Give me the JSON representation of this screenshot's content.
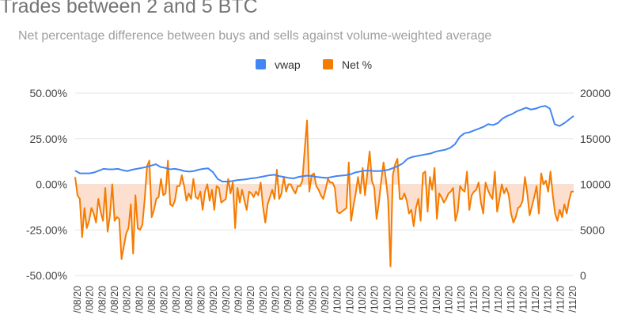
{
  "chart_data": {
    "type": "line",
    "title": "Trades between 2 and 5 BTC",
    "subtitle": "Net percentage difference between buys and sells against volume-weighted average",
    "legend": {
      "position": "top",
      "entries": [
        "vwap",
        "Net %"
      ]
    },
    "colors": {
      "vwap": "#4285f4",
      "net": "#f57c00",
      "net_fill": "#fbd9c6",
      "grid": "#e6e6e6"
    },
    "left_axis": {
      "series": "Net %",
      "ylim": [
        -50,
        50
      ],
      "ticks": [
        "50.00%",
        "25.00%",
        "0.00%",
        "-25.00%",
        "-50.00%"
      ]
    },
    "right_axis": {
      "series": "vwap",
      "ylim": [
        0,
        20000
      ],
      "ticks": [
        "20000",
        "15000",
        "10000",
        "5000",
        "0"
      ]
    },
    "x_tick_labels": [
      "/08/20",
      "/08/20",
      "/08/20",
      "/08/20",
      "/08/20",
      "/08/20",
      "/08/20",
      "/08/20",
      "/08/20",
      "/08/20",
      "/08/20",
      "/09/20",
      "/09/20",
      "/09/20",
      "/09/20",
      "/09/20",
      "/09/20",
      "/09/20",
      "/09/20",
      "/09/20",
      "/09/20",
      "/10/20",
      "/10/20",
      "/10/20",
      "/10/20",
      "/10/20",
      "/10/20",
      "/10/20",
      "/10/20",
      "/10/20",
      "/10/20",
      "/11/20",
      "/11/20",
      "/11/20",
      "/11/20",
      "/11/20",
      "/11/20",
      "/11/20",
      "/11/20",
      "/11/20",
      "/11/20"
    ],
    "series": [
      {
        "name": "vwap",
        "axis": "right",
        "values": [
          11500,
          11200,
          11200,
          11200,
          11300,
          11500,
          11700,
          11650,
          11650,
          11700,
          11550,
          11450,
          11600,
          11700,
          11800,
          11900,
          12050,
          12200,
          11900,
          11800,
          11650,
          11700,
          11600,
          11450,
          11400,
          11450,
          11600,
          11700,
          11750,
          11350,
          10600,
          10300,
          10300,
          10350,
          10450,
          10500,
          10550,
          10650,
          10700,
          10800,
          10900,
          11000,
          11050,
          10900,
          10800,
          10700,
          10650,
          10800,
          10900,
          10950,
          10900,
          10800,
          10750,
          10700,
          10800,
          10900,
          10950,
          11000,
          11100,
          11300,
          11400,
          11500,
          11500,
          11450,
          11450,
          11500,
          11600,
          11800,
          12000,
          12300,
          12800,
          13000,
          13100,
          13200,
          13300,
          13400,
          13600,
          13700,
          13800,
          14000,
          14400,
          15200,
          15600,
          15700,
          15900,
          16100,
          16300,
          16600,
          16500,
          16700,
          17200,
          17500,
          17700,
          18000,
          18200,
          18400,
          18200,
          18300,
          18500,
          18600,
          18300,
          16600,
          16400,
          16700,
          17100,
          17500
        ]
      },
      {
        "name": "Net %",
        "axis": "left",
        "values": [
          4,
          -6,
          -8,
          -29,
          -13,
          -24,
          -20,
          -13,
          -16,
          -21,
          -8,
          -15,
          -20,
          -2,
          -26,
          -17,
          0,
          -20,
          -18,
          -19,
          -41,
          -34,
          -27,
          -24,
          -11,
          -38,
          -6,
          -24,
          -25,
          -22,
          -8,
          10,
          13,
          -18,
          -14,
          -8,
          -7,
          3,
          -6,
          -5,
          13,
          -11,
          -12,
          -9,
          -1,
          -1,
          5,
          -1,
          -9,
          -5,
          -8,
          3,
          -7,
          -8,
          -4,
          -14,
          -4,
          0,
          -9,
          -3,
          -14,
          -1,
          -2,
          -10,
          -9,
          -8,
          3,
          -5,
          1,
          -24,
          -2,
          -10,
          -3,
          -9,
          -14,
          -4,
          -5,
          -7,
          -4,
          -6,
          1,
          -12,
          -21,
          -11,
          -7,
          -3,
          -8,
          8,
          -8,
          -5,
          4,
          -4,
          0,
          0,
          -3,
          -5,
          -1,
          -1,
          2,
          19,
          35,
          -4,
          5,
          6,
          -1,
          -3,
          -6,
          -8,
          -3,
          3,
          1,
          1,
          -2,
          -15,
          -16,
          -15,
          -14,
          -13,
          12,
          -20,
          -12,
          -5,
          4,
          -5,
          9,
          -6,
          6,
          18,
          2,
          -2,
          -19,
          -10,
          2,
          12,
          3,
          -9,
          -45,
          5,
          11,
          14,
          -8,
          -8,
          -5,
          -9,
          -16,
          -14,
          -23,
          -13,
          -8,
          -20,
          6,
          7,
          -15,
          4,
          -3,
          9,
          -19,
          -5,
          -7,
          -10,
          -8,
          -5,
          -4,
          -2,
          -20,
          -15,
          -1,
          -3,
          -4,
          7,
          -14,
          -6,
          -4,
          -3,
          1,
          -10,
          -16,
          1,
          -3,
          -6,
          -8,
          7,
          -15,
          -8,
          0,
          -5,
          -2,
          -6,
          -16,
          -21,
          -18,
          -13,
          -12,
          -9,
          4,
          -5,
          -17,
          -12,
          -7,
          -1,
          -16,
          6,
          0,
          2,
          -4,
          7,
          -6,
          -16,
          -20,
          -14,
          -18,
          -11,
          -16,
          -9,
          -4,
          -4
        ]
      }
    ]
  }
}
